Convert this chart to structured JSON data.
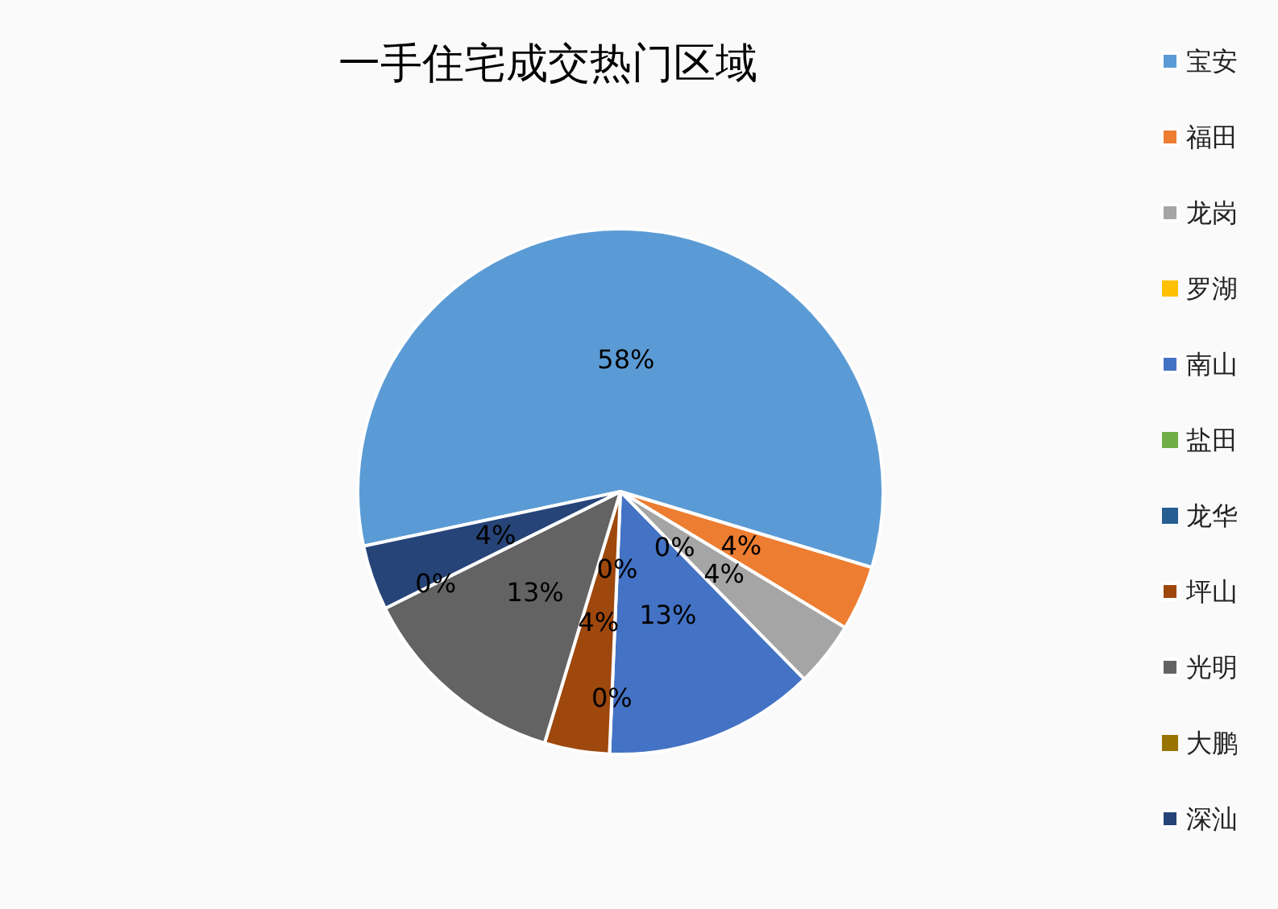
{
  "chart_data": {
    "type": "pie",
    "title": "一手住宅成交热门区域",
    "categories": [
      "宝安",
      "福田",
      "龙岗",
      "罗湖",
      "南山",
      "盐田",
      "龙华",
      "坪山",
      "光明",
      "大鹏",
      "深汕"
    ],
    "values": [
      58,
      4,
      4,
      0,
      13,
      0,
      0,
      4,
      13,
      0,
      4
    ],
    "value_labels": [
      "58%",
      "4%",
      "4%",
      "0%",
      "13%",
      "0%",
      "0%",
      "4%",
      "13%",
      "0%",
      "4%"
    ],
    "colors": [
      "#5b9bd5",
      "#ed7d31",
      "#a5a5a5",
      "#ffc000",
      "#4472c4",
      "#70ad47",
      "#255e91",
      "#9e480e",
      "#636363",
      "#997300",
      "#264478"
    ],
    "legend": "right"
  }
}
